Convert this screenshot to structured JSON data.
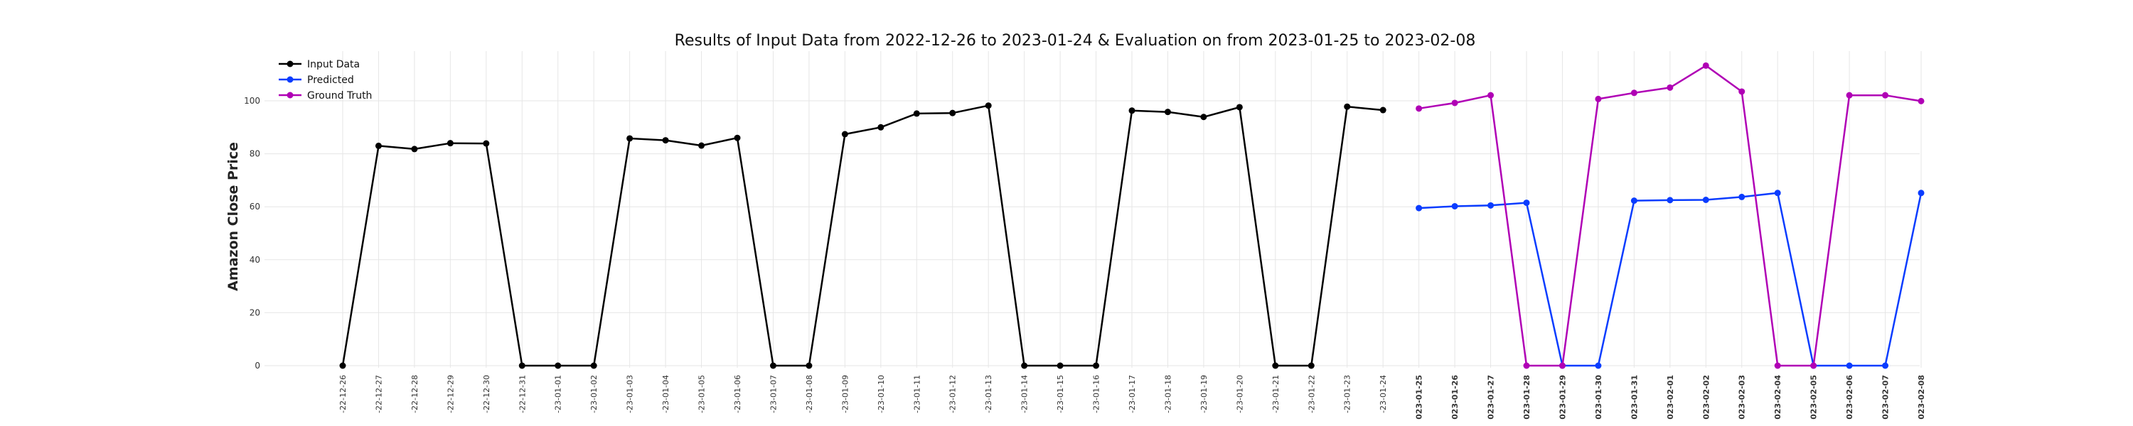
{
  "chart_data": {
    "type": "line",
    "title": "Results of Input Data from 2022-12-26 to 2023-01-24 & Evaluation on from 2023-01-25 to 2023-02-08",
    "ylabel": "Amazon Close Price",
    "xlabel": "",
    "ylim": [
      -4,
      118
    ],
    "yticks": [
      0,
      20,
      40,
      60,
      80,
      100
    ],
    "grid": true,
    "legend_position": "top-left",
    "categories": [
      "2022-12-26",
      "2022-12-27",
      "2022-12-28",
      "2022-12-29",
      "2022-12-30",
      "2022-12-31",
      "2023-01-01",
      "2023-01-02",
      "2023-01-03",
      "2023-01-04",
      "2023-01-05",
      "2023-01-06",
      "2023-01-07",
      "2023-01-08",
      "2023-01-09",
      "2023-01-10",
      "2023-01-11",
      "2023-01-12",
      "2023-01-13",
      "2023-01-14",
      "2023-01-15",
      "2023-01-16",
      "2023-01-17",
      "2023-01-18",
      "2023-01-19",
      "2023-01-20",
      "2023-01-21",
      "2023-01-22",
      "2023-01-23",
      "2023-01-24",
      "2023-01-25",
      "2023-01-26",
      "2023-01-27",
      "2023-01-28",
      "2023-01-29",
      "2023-01-30",
      "2023-01-31",
      "2023-02-01",
      "2023-02-02",
      "2023-02-03",
      "2023-02-04",
      "2023-02-05",
      "2023-02-06",
      "2023-02-07",
      "2023-02-08"
    ],
    "tick_labels": [
      "-22-12-26",
      "-22-12-27",
      "-22-12-28",
      "-22-12-29",
      "-22-12-30",
      "-22-12-31",
      "-23-01-01",
      "-23-01-02",
      "-23-01-03",
      "-23-01-04",
      "-23-01-05",
      "-23-01-06",
      "-23-01-07",
      "-23-01-08",
      "-23-01-09",
      "-23-01-10",
      "-23-01-11",
      "-23-01-12",
      "-23-01-13",
      "-23-01-14",
      "-23-01-15",
      "-23-01-16",
      "-23-01-17",
      "-23-01-18",
      "-23-01-19",
      "-23-01-20",
      "-23-01-21",
      "-23-01-22",
      "-23-01-23",
      "-23-01-24",
      "023-01-25",
      "023-01-26",
      "023-01-27",
      "023-01-28",
      "023-01-29",
      "023-01-30",
      "023-01-31",
      "023-02-01",
      "023-02-02",
      "023-02-03",
      "023-02-04",
      "023-02-05",
      "023-02-06",
      "023-02-07",
      "023-02-08"
    ],
    "series": [
      {
        "name": "Input Data",
        "color": "#000000",
        "x": [
          "2022-12-26",
          "2022-12-27",
          "2022-12-28",
          "2022-12-29",
          "2022-12-30",
          "2022-12-31",
          "2023-01-01",
          "2023-01-02",
          "2023-01-03",
          "2023-01-04",
          "2023-01-05",
          "2023-01-06",
          "2023-01-07",
          "2023-01-08",
          "2023-01-09",
          "2023-01-10",
          "2023-01-11",
          "2023-01-12",
          "2023-01-13",
          "2023-01-14",
          "2023-01-15",
          "2023-01-16",
          "2023-01-17",
          "2023-01-18",
          "2023-01-19",
          "2023-01-20",
          "2023-01-21",
          "2023-01-22",
          "2023-01-23",
          "2023-01-24"
        ],
        "values": [
          0,
          83,
          81.8,
          84,
          83.9,
          0,
          0,
          0,
          85.8,
          85.1,
          83.1,
          86,
          0,
          0,
          87.4,
          90,
          95.2,
          95.4,
          98.2,
          0,
          0,
          0,
          96.3,
          95.8,
          93.9,
          97.6,
          0,
          0,
          97.8,
          96.5
        ]
      },
      {
        "name": "Predicted",
        "color": "#0a3cff",
        "x": [
          "2023-01-25",
          "2023-01-26",
          "2023-01-27",
          "2023-01-28",
          "2023-01-29",
          "2023-01-30",
          "2023-01-31",
          "2023-02-01",
          "2023-02-02",
          "2023-02-03",
          "2023-02-04",
          "2023-02-05",
          "2023-02-06",
          "2023-02-07",
          "2023-02-08"
        ],
        "values": [
          59.5,
          60.2,
          60.5,
          61.5,
          0,
          0,
          62.3,
          62.5,
          62.6,
          63.7,
          65.2,
          0,
          0,
          0,
          65.2
        ]
      },
      {
        "name": "Ground Truth",
        "color": "#b000b5",
        "x": [
          "2023-01-25",
          "2023-01-26",
          "2023-01-27",
          "2023-01-28",
          "2023-01-29",
          "2023-01-30",
          "2023-01-31",
          "2023-02-01",
          "2023-02-02",
          "2023-02-03",
          "2023-02-04",
          "2023-02-05",
          "2023-02-06",
          "2023-02-07",
          "2023-02-08"
        ],
        "values": [
          97.1,
          99.2,
          102.1,
          0,
          0,
          100.7,
          103,
          105,
          113.3,
          103.5,
          0,
          0,
          102.1,
          102.1,
          99.9
        ]
      }
    ]
  }
}
